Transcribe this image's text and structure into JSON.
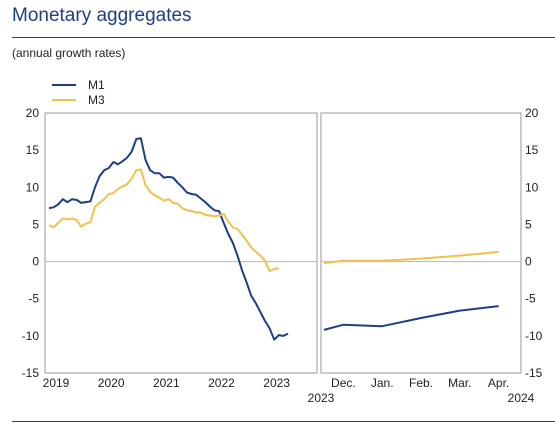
{
  "header": {
    "title": "Monetary aggregates",
    "subtitle": "(annual growth rates)"
  },
  "chart_data": {
    "type": "line",
    "y_ticks": [
      20,
      15,
      10,
      5,
      0,
      -5,
      -10,
      -15
    ],
    "ylim": [
      -15,
      20
    ],
    "grid": false,
    "legend": "top-left",
    "colors": {
      "M1": "#1d3f86",
      "M3": "#f2c14b"
    },
    "left_panel": {
      "x_tick_labels": [
        "2019",
        "2020",
        "2021",
        "2022",
        "2023"
      ],
      "x_range": [
        "2019-01",
        "2023-10"
      ],
      "series": [
        {
          "name": "M1",
          "points": [
            [
              "2019-01",
              7.2
            ],
            [
              "2019-02",
              7.3
            ],
            [
              "2019-03",
              7.7
            ],
            [
              "2019-04",
              8.4
            ],
            [
              "2019-05",
              8.0
            ],
            [
              "2019-06",
              8.4
            ],
            [
              "2019-07",
              8.3
            ],
            [
              "2019-08",
              7.9
            ],
            [
              "2019-09",
              8.0
            ],
            [
              "2019-10",
              8.1
            ],
            [
              "2019-11",
              10.0
            ],
            [
              "2019-12",
              11.5
            ],
            [
              "2020-01",
              12.3
            ],
            [
              "2020-02",
              12.6
            ],
            [
              "2020-03",
              13.4
            ],
            [
              "2020-04",
              13.1
            ],
            [
              "2020-05",
              13.5
            ],
            [
              "2020-06",
              14.0
            ],
            [
              "2020-07",
              14.8
            ],
            [
              "2020-08",
              16.5
            ],
            [
              "2020-09",
              16.6
            ],
            [
              "2020-10",
              13.7
            ],
            [
              "2020-11",
              12.3
            ],
            [
              "2020-12",
              11.9
            ],
            [
              "2021-01",
              11.9
            ],
            [
              "2021-02",
              11.3
            ],
            [
              "2021-03",
              11.4
            ],
            [
              "2021-04",
              11.3
            ],
            [
              "2021-05",
              10.6
            ],
            [
              "2021-06",
              10.0
            ],
            [
              "2021-07",
              9.3
            ],
            [
              "2021-08",
              9.1
            ],
            [
              "2021-09",
              9.0
            ],
            [
              "2021-10",
              8.5
            ],
            [
              "2021-11",
              8.0
            ],
            [
              "2021-12",
              7.4
            ],
            [
              "2022-01",
              6.9
            ],
            [
              "2022-02",
              6.8
            ],
            [
              "2022-03",
              5.2
            ],
            [
              "2022-04",
              3.7
            ],
            [
              "2022-05",
              2.5
            ],
            [
              "2022-06",
              0.8
            ],
            [
              "2022-07",
              -1.2
            ],
            [
              "2022-08",
              -2.8
            ],
            [
              "2022-09",
              -4.6
            ],
            [
              "2022-10",
              -5.6
            ],
            [
              "2022-11",
              -6.8
            ],
            [
              "2022-12",
              -8.0
            ],
            [
              "2023-01",
              -9.0
            ],
            [
              "2023-02",
              -10.5
            ],
            [
              "2023-03",
              -9.9
            ],
            [
              "2023-04",
              -10.0
            ],
            [
              "2023-05",
              -9.7
            ]
          ]
        },
        {
          "name": "M3",
          "points": [
            [
              "2019-01",
              4.9
            ],
            [
              "2019-02",
              4.6
            ],
            [
              "2019-03",
              5.2
            ],
            [
              "2019-04",
              5.8
            ],
            [
              "2019-05",
              5.7
            ],
            [
              "2019-06",
              5.8
            ],
            [
              "2019-07",
              5.6
            ],
            [
              "2019-08",
              4.7
            ],
            [
              "2019-09",
              5.1
            ],
            [
              "2019-10",
              5.3
            ],
            [
              "2019-11",
              7.4
            ],
            [
              "2019-12",
              7.9
            ],
            [
              "2020-01",
              8.4
            ],
            [
              "2020-02",
              9.1
            ],
            [
              "2020-03",
              9.2
            ],
            [
              "2020-04",
              9.8
            ],
            [
              "2020-05",
              10.1
            ],
            [
              "2020-06",
              10.4
            ],
            [
              "2020-07",
              11.2
            ],
            [
              "2020-08",
              12.3
            ],
            [
              "2020-09",
              12.4
            ],
            [
              "2020-10",
              10.3
            ],
            [
              "2020-11",
              9.4
            ],
            [
              "2020-12",
              8.9
            ],
            [
              "2021-01",
              8.6
            ],
            [
              "2021-02",
              8.2
            ],
            [
              "2021-03",
              8.4
            ],
            [
              "2021-04",
              7.9
            ],
            [
              "2021-05",
              7.8
            ],
            [
              "2021-06",
              7.2
            ],
            [
              "2021-07",
              6.9
            ],
            [
              "2021-08",
              6.8
            ],
            [
              "2021-09",
              6.6
            ],
            [
              "2021-10",
              6.6
            ],
            [
              "2021-11",
              6.3
            ],
            [
              "2021-12",
              6.2
            ],
            [
              "2022-01",
              6.1
            ],
            [
              "2022-02",
              6.2
            ],
            [
              "2022-03",
              6.4
            ],
            [
              "2022-04",
              5.4
            ],
            [
              "2022-05",
              4.6
            ],
            [
              "2022-06",
              4.4
            ],
            [
              "2022-07",
              3.6
            ],
            [
              "2022-08",
              2.8
            ],
            [
              "2022-09",
              1.9
            ],
            [
              "2022-10",
              1.3
            ],
            [
              "2022-11",
              0.8
            ],
            [
              "2022-12",
              0.1
            ],
            [
              "2023-01",
              -1.3
            ],
            [
              "2023-02",
              -1.0
            ],
            [
              "2023-03",
              -0.9
            ]
          ]
        }
      ]
    },
    "right_panel": {
      "x_tick_labels": [
        "Dec.",
        "Jan.",
        "Feb.",
        "Mar.",
        "Apr."
      ],
      "year_labels": {
        "start": "2023",
        "end": "2024"
      },
      "x_range": [
        0,
        5
      ],
      "series": [
        {
          "name": "M1",
          "points": [
            [
              0,
              -9.2
            ],
            [
              0.5,
              -8.5
            ],
            [
              1.5,
              -8.7
            ],
            [
              2.5,
              -7.6
            ],
            [
              3.5,
              -6.6
            ],
            [
              4.5,
              -6.0
            ]
          ]
        },
        {
          "name": "M3",
          "points": [
            [
              0,
              -0.2
            ],
            [
              0.5,
              0.1
            ],
            [
              1.5,
              0.1
            ],
            [
              2.5,
              0.4
            ],
            [
              3.5,
              0.8
            ],
            [
              4.5,
              1.3
            ]
          ]
        }
      ]
    }
  }
}
